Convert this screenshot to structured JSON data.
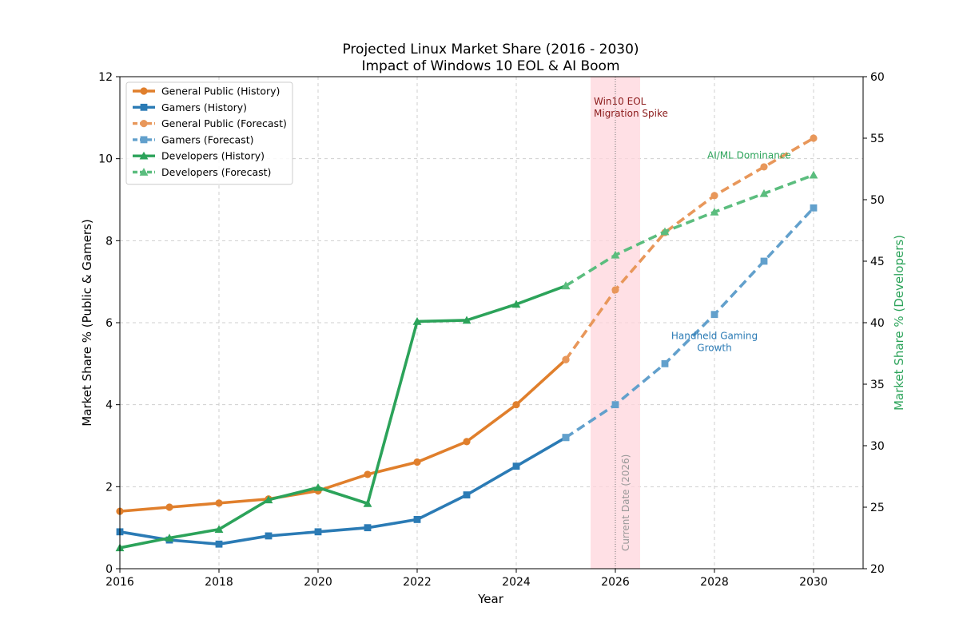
{
  "chart_data": {
    "type": "line",
    "title": "Projected Linux Market Share (2016 - 2030)",
    "subtitle": "Impact of Windows 10 EOL & AI Boom",
    "xlabel": "Year",
    "ylabel": "Market Share % (Public & Gamers)",
    "ylabel_right": "Market Share % (Developers)",
    "xlim": [
      2016,
      2031
    ],
    "ylim": [
      0,
      12
    ],
    "ylim_right": [
      20,
      60
    ],
    "x_ticks": [
      2016,
      2018,
      2020,
      2022,
      2024,
      2026,
      2028,
      2030
    ],
    "y_ticks": [
      0,
      2,
      4,
      6,
      8,
      10,
      12
    ],
    "y_ticks_right": [
      20,
      25,
      30,
      35,
      40,
      45,
      50,
      55,
      60
    ],
    "grid": true,
    "legend_position": "upper-left",
    "colors": {
      "public": "#e07f2c",
      "gamers": "#2b7bb5",
      "developers": "#2ca35a",
      "highlight": "#ffd6dc"
    },
    "series": [
      {
        "name": "General Public (History)",
        "axis": "left",
        "style": "solid",
        "marker": "circle",
        "color": "#e07f2c",
        "x": [
          2016,
          2017,
          2018,
          2019,
          2020,
          2021,
          2022,
          2023,
          2024,
          2025
        ],
        "y": [
          1.4,
          1.5,
          1.6,
          1.7,
          1.9,
          2.3,
          2.6,
          3.1,
          4.0,
          5.1
        ]
      },
      {
        "name": "Gamers (History)",
        "axis": "left",
        "style": "solid",
        "marker": "square",
        "color": "#2b7bb5",
        "x": [
          2016,
          2017,
          2018,
          2019,
          2020,
          2021,
          2022,
          2023,
          2024,
          2025
        ],
        "y": [
          0.9,
          0.7,
          0.6,
          0.8,
          0.9,
          1.0,
          1.2,
          1.8,
          2.5,
          3.2
        ]
      },
      {
        "name": "General Public (Forecast)",
        "axis": "left",
        "style": "dashed",
        "marker": "circle",
        "color": "#e8975a",
        "x": [
          2025,
          2026,
          2027,
          2028,
          2029,
          2030
        ],
        "y": [
          5.1,
          6.8,
          8.2,
          9.1,
          9.8,
          10.5
        ]
      },
      {
        "name": "Gamers (Forecast)",
        "axis": "left",
        "style": "dashed",
        "marker": "square",
        "color": "#62a0cc",
        "x": [
          2025,
          2026,
          2027,
          2028,
          2029,
          2030
        ],
        "y": [
          3.2,
          4.0,
          5.0,
          6.2,
          7.5,
          8.8
        ]
      },
      {
        "name": "Developers (History)",
        "axis": "right",
        "style": "solid",
        "marker": "triangle",
        "color": "#2ca35a",
        "x": [
          2016,
          2017,
          2018,
          2019,
          2020,
          2021,
          2022,
          2023,
          2024,
          2025
        ],
        "y": [
          21.7,
          22.5,
          23.2,
          25.6,
          26.6,
          25.3,
          40.1,
          40.2,
          41.5,
          43.0
        ]
      },
      {
        "name": "Developers (Forecast)",
        "axis": "right",
        "style": "dashed",
        "marker": "triangle",
        "color": "#5bbd7e",
        "x": [
          2025,
          2026,
          2027,
          2028,
          2029,
          2030
        ],
        "y": [
          43.0,
          45.5,
          47.4,
          49.0,
          50.5,
          52.0
        ]
      }
    ],
    "highlight_band": {
      "x": [
        2025.5,
        2026.5
      ],
      "label": "Win10 EOL\nMigration Spike"
    },
    "vertical_line": {
      "x": 2026,
      "label": "Current Date (2026)"
    },
    "annotations": [
      {
        "text": "AI/ML Dominance",
        "x": 2028.7,
        "y": 10.0,
        "color": "#2ca35a"
      },
      {
        "text": "Handheld Gaming\nGrowth",
        "x": 2028.0,
        "y": 5.6,
        "color": "#2b7bb5"
      }
    ]
  }
}
